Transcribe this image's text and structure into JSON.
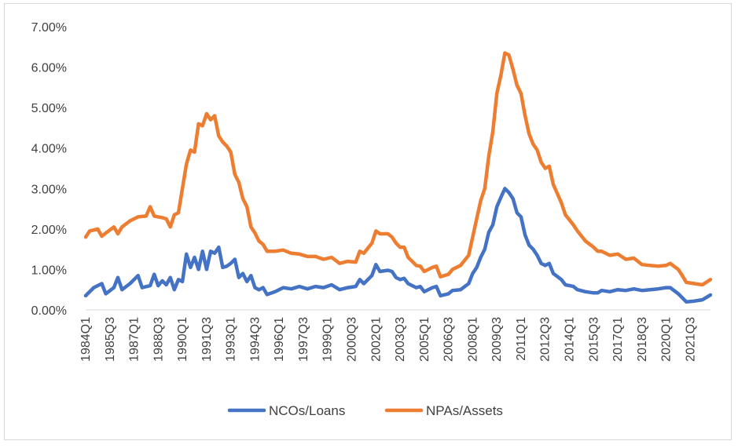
{
  "chart_data": {
    "type": "line",
    "ylim": [
      0,
      7
    ],
    "y_ticks": [
      "0.00%",
      "1.00%",
      "2.00%",
      "3.00%",
      "4.00%",
      "5.00%",
      "6.00%",
      "7.00%"
    ],
    "x_start": "1984Q1",
    "x_end": "2022Q4",
    "x_ticks": [
      "1984Q1",
      "1985Q3",
      "1987Q1",
      "1988Q3",
      "1990Q1",
      "1991Q3",
      "1993Q1",
      "1994Q3",
      "1996Q1",
      "1997Q3",
      "1999Q1",
      "2000Q3",
      "2002Q1",
      "2003Q3",
      "2005Q1",
      "2006Q3",
      "2008Q1",
      "2009Q3",
      "2011Q1",
      "2012Q3",
      "2014Q1",
      "2015Q3",
      "2017Q1",
      "2018Q3",
      "2020Q1",
      "2021Q3"
    ],
    "grid": false,
    "legend_position": "bottom",
    "series": [
      {
        "name": "NCOs/Loans",
        "color": "#4472C4",
        "points": [
          [
            "1984Q1",
            0.35
          ],
          [
            "1984Q3",
            0.55
          ],
          [
            "1985Q1",
            0.65
          ],
          [
            "1985Q2",
            0.4
          ],
          [
            "1985Q4",
            0.55
          ],
          [
            "1986Q1",
            0.8
          ],
          [
            "1986Q2",
            0.5
          ],
          [
            "1986Q4",
            0.65
          ],
          [
            "1987Q2",
            0.85
          ],
          [
            "1987Q3",
            0.55
          ],
          [
            "1988Q1",
            0.6
          ],
          [
            "1988Q2",
            0.88
          ],
          [
            "1988Q3",
            0.6
          ],
          [
            "1988Q4",
            0.72
          ],
          [
            "1989Q1",
            0.62
          ],
          [
            "1989Q2",
            0.8
          ],
          [
            "1989Q3",
            0.5
          ],
          [
            "1989Q4",
            0.75
          ],
          [
            "1990Q1",
            0.7
          ],
          [
            "1990Q2",
            1.38
          ],
          [
            "1990Q3",
            1.05
          ],
          [
            "1990Q4",
            1.3
          ],
          [
            "1991Q1",
            1.0
          ],
          [
            "1991Q2",
            1.45
          ],
          [
            "1991Q3",
            1.0
          ],
          [
            "1991Q4",
            1.45
          ],
          [
            "1992Q1",
            1.4
          ],
          [
            "1992Q2",
            1.55
          ],
          [
            "1992Q3",
            1.05
          ],
          [
            "1992Q4",
            1.08
          ],
          [
            "1993Q1",
            1.15
          ],
          [
            "1993Q2",
            1.25
          ],
          [
            "1993Q3",
            0.8
          ],
          [
            "1993Q4",
            0.9
          ],
          [
            "1994Q1",
            0.7
          ],
          [
            "1994Q2",
            0.85
          ],
          [
            "1994Q3",
            0.55
          ],
          [
            "1994Q4",
            0.5
          ],
          [
            "1995Q1",
            0.55
          ],
          [
            "1995Q2",
            0.38
          ],
          [
            "1995Q4",
            0.45
          ],
          [
            "1996Q2",
            0.55
          ],
          [
            "1996Q4",
            0.52
          ],
          [
            "1997Q2",
            0.58
          ],
          [
            "1997Q4",
            0.52
          ],
          [
            "1998Q2",
            0.58
          ],
          [
            "1998Q4",
            0.55
          ],
          [
            "1999Q2",
            0.62
          ],
          [
            "1999Q4",
            0.5
          ],
          [
            "2000Q2",
            0.55
          ],
          [
            "2000Q4",
            0.58
          ],
          [
            "2001Q1",
            0.75
          ],
          [
            "2001Q2",
            0.65
          ],
          [
            "2001Q4",
            0.85
          ],
          [
            "2002Q1",
            1.12
          ],
          [
            "2002Q2",
            0.95
          ],
          [
            "2002Q4",
            0.98
          ],
          [
            "2003Q1",
            0.95
          ],
          [
            "2003Q2",
            0.8
          ],
          [
            "2003Q3",
            0.75
          ],
          [
            "2003Q4",
            0.78
          ],
          [
            "2004Q1",
            0.65
          ],
          [
            "2004Q3",
            0.55
          ],
          [
            "2004Q4",
            0.58
          ],
          [
            "2005Q1",
            0.45
          ],
          [
            "2005Q3",
            0.55
          ],
          [
            "2005Q4",
            0.58
          ],
          [
            "2006Q1",
            0.35
          ],
          [
            "2006Q3",
            0.4
          ],
          [
            "2006Q4",
            0.48
          ],
          [
            "2007Q2",
            0.5
          ],
          [
            "2007Q4",
            0.65
          ],
          [
            "2008Q1",
            0.9
          ],
          [
            "2008Q2",
            1.05
          ],
          [
            "2008Q3",
            1.3
          ],
          [
            "2008Q4",
            1.5
          ],
          [
            "2009Q1",
            1.92
          ],
          [
            "2009Q2",
            2.1
          ],
          [
            "2009Q3",
            2.55
          ],
          [
            "2009Q4",
            2.78
          ],
          [
            "2010Q1",
            3.0
          ],
          [
            "2010Q2",
            2.9
          ],
          [
            "2010Q3",
            2.75
          ],
          [
            "2010Q4",
            2.4
          ],
          [
            "2011Q1",
            2.3
          ],
          [
            "2011Q2",
            1.85
          ],
          [
            "2011Q3",
            1.6
          ],
          [
            "2011Q4",
            1.5
          ],
          [
            "2012Q1",
            1.35
          ],
          [
            "2012Q2",
            1.15
          ],
          [
            "2012Q3",
            1.1
          ],
          [
            "2012Q4",
            1.15
          ],
          [
            "2013Q1",
            0.9
          ],
          [
            "2013Q3",
            0.75
          ],
          [
            "2013Q4",
            0.62
          ],
          [
            "2014Q2",
            0.58
          ],
          [
            "2014Q3",
            0.5
          ],
          [
            "2015Q1",
            0.45
          ],
          [
            "2015Q3",
            0.42
          ],
          [
            "2015Q4",
            0.42
          ],
          [
            "2016Q1",
            0.48
          ],
          [
            "2016Q3",
            0.45
          ],
          [
            "2017Q1",
            0.5
          ],
          [
            "2017Q3",
            0.48
          ],
          [
            "2018Q1",
            0.52
          ],
          [
            "2018Q3",
            0.48
          ],
          [
            "2019Q1",
            0.5
          ],
          [
            "2019Q3",
            0.52
          ],
          [
            "2020Q1",
            0.55
          ],
          [
            "2020Q2",
            0.55
          ],
          [
            "2020Q4",
            0.4
          ],
          [
            "2021Q1",
            0.3
          ],
          [
            "2021Q2",
            0.2
          ],
          [
            "2021Q4",
            0.22
          ],
          [
            "2022Q2",
            0.25
          ],
          [
            "2022Q4",
            0.37
          ]
        ]
      },
      {
        "name": "NPAs/Assets",
        "color": "#ED7D31",
        "points": [
          [
            "1984Q1",
            1.8
          ],
          [
            "1984Q2",
            1.95
          ],
          [
            "1984Q4",
            2.0
          ],
          [
            "1985Q1",
            1.82
          ],
          [
            "1985Q2",
            1.9
          ],
          [
            "1985Q4",
            2.05
          ],
          [
            "1986Q1",
            1.88
          ],
          [
            "1986Q2",
            2.05
          ],
          [
            "1986Q4",
            2.2
          ],
          [
            "1987Q2",
            2.3
          ],
          [
            "1987Q4",
            2.32
          ],
          [
            "1988Q1",
            2.55
          ],
          [
            "1988Q2",
            2.32
          ],
          [
            "1988Q4",
            2.28
          ],
          [
            "1989Q1",
            2.25
          ],
          [
            "1989Q2",
            2.05
          ],
          [
            "1989Q3",
            2.35
          ],
          [
            "1989Q4",
            2.4
          ],
          [
            "1990Q1",
            3.0
          ],
          [
            "1990Q2",
            3.6
          ],
          [
            "1990Q3",
            3.95
          ],
          [
            "1990Q4",
            3.9
          ],
          [
            "1991Q1",
            4.6
          ],
          [
            "1991Q2",
            4.55
          ],
          [
            "1991Q3",
            4.85
          ],
          [
            "1991Q4",
            4.7
          ],
          [
            "1992Q1",
            4.8
          ],
          [
            "1992Q2",
            4.3
          ],
          [
            "1992Q3",
            4.15
          ],
          [
            "1992Q4",
            4.05
          ],
          [
            "1993Q1",
            3.9
          ],
          [
            "1993Q2",
            3.35
          ],
          [
            "1993Q3",
            3.15
          ],
          [
            "1993Q4",
            2.75
          ],
          [
            "1994Q1",
            2.55
          ],
          [
            "1994Q2",
            2.05
          ],
          [
            "1994Q3",
            1.9
          ],
          [
            "1994Q4",
            1.7
          ],
          [
            "1995Q1",
            1.62
          ],
          [
            "1995Q2",
            1.45
          ],
          [
            "1995Q4",
            1.45
          ],
          [
            "1996Q2",
            1.48
          ],
          [
            "1996Q4",
            1.4
          ],
          [
            "1997Q2",
            1.38
          ],
          [
            "1997Q4",
            1.32
          ],
          [
            "1998Q2",
            1.32
          ],
          [
            "1998Q4",
            1.25
          ],
          [
            "1999Q2",
            1.3
          ],
          [
            "1999Q4",
            1.15
          ],
          [
            "2000Q2",
            1.2
          ],
          [
            "2000Q4",
            1.18
          ],
          [
            "2001Q1",
            1.45
          ],
          [
            "2001Q2",
            1.4
          ],
          [
            "2001Q4",
            1.65
          ],
          [
            "2002Q1",
            1.95
          ],
          [
            "2002Q2",
            1.88
          ],
          [
            "2002Q4",
            1.88
          ],
          [
            "2003Q1",
            1.8
          ],
          [
            "2003Q2",
            1.65
          ],
          [
            "2003Q3",
            1.55
          ],
          [
            "2003Q4",
            1.55
          ],
          [
            "2004Q1",
            1.3
          ],
          [
            "2004Q3",
            1.1
          ],
          [
            "2004Q4",
            1.08
          ],
          [
            "2005Q1",
            0.95
          ],
          [
            "2005Q3",
            1.05
          ],
          [
            "2005Q4",
            1.08
          ],
          [
            "2006Q1",
            0.82
          ],
          [
            "2006Q3",
            0.88
          ],
          [
            "2006Q4",
            1.0
          ],
          [
            "2007Q2",
            1.1
          ],
          [
            "2007Q4",
            1.35
          ],
          [
            "2008Q1",
            1.8
          ],
          [
            "2008Q2",
            2.25
          ],
          [
            "2008Q3",
            2.7
          ],
          [
            "2008Q4",
            3.0
          ],
          [
            "2009Q1",
            3.8
          ],
          [
            "2009Q2",
            4.4
          ],
          [
            "2009Q3",
            5.35
          ],
          [
            "2009Q4",
            5.8
          ],
          [
            "2010Q1",
            6.35
          ],
          [
            "2010Q2",
            6.3
          ],
          [
            "2010Q3",
            5.95
          ],
          [
            "2010Q4",
            5.55
          ],
          [
            "2011Q1",
            5.35
          ],
          [
            "2011Q2",
            4.8
          ],
          [
            "2011Q3",
            4.35
          ],
          [
            "2011Q4",
            4.1
          ],
          [
            "2012Q1",
            3.95
          ],
          [
            "2012Q2",
            3.65
          ],
          [
            "2012Q3",
            3.5
          ],
          [
            "2012Q4",
            3.55
          ],
          [
            "2013Q1",
            3.1
          ],
          [
            "2013Q3",
            2.65
          ],
          [
            "2013Q4",
            2.35
          ],
          [
            "2014Q2",
            2.1
          ],
          [
            "2014Q3",
            1.95
          ],
          [
            "2015Q1",
            1.7
          ],
          [
            "2015Q3",
            1.55
          ],
          [
            "2015Q4",
            1.45
          ],
          [
            "2016Q1",
            1.45
          ],
          [
            "2016Q3",
            1.35
          ],
          [
            "2017Q1",
            1.38
          ],
          [
            "2017Q3",
            1.25
          ],
          [
            "2018Q1",
            1.28
          ],
          [
            "2018Q3",
            1.12
          ],
          [
            "2019Q1",
            1.1
          ],
          [
            "2019Q3",
            1.08
          ],
          [
            "2020Q1",
            1.1
          ],
          [
            "2020Q2",
            1.15
          ],
          [
            "2020Q4",
            1.0
          ],
          [
            "2021Q1",
            0.85
          ],
          [
            "2021Q2",
            0.68
          ],
          [
            "2021Q4",
            0.65
          ],
          [
            "2022Q2",
            0.62
          ],
          [
            "2022Q4",
            0.75
          ]
        ]
      }
    ]
  }
}
